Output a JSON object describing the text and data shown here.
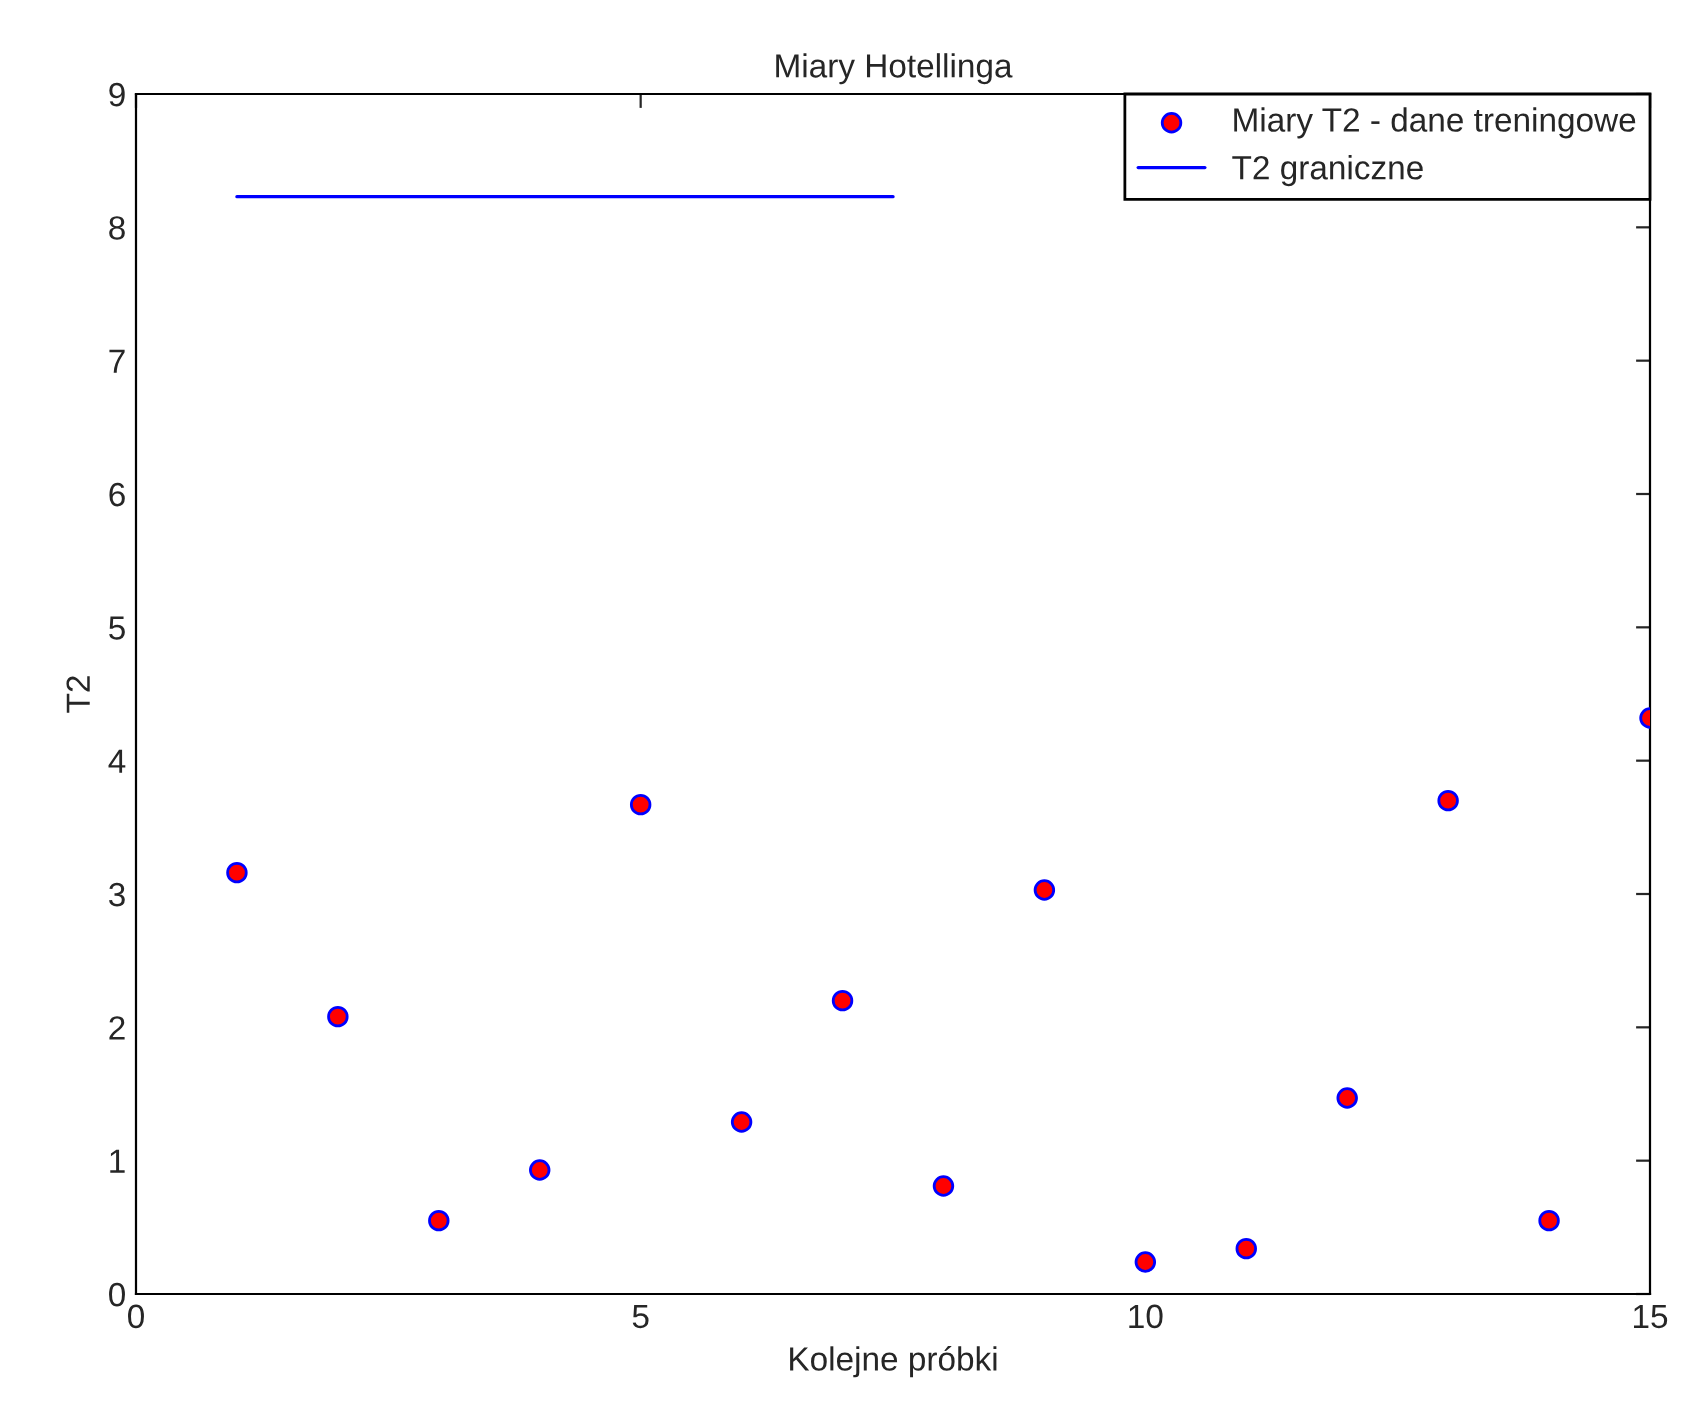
{
  "chart_data": {
    "type": "scatter",
    "title": "Miary Hotellinga",
    "xlabel": "Kolejne próbki",
    "ylabel": "T2",
    "series": [
      {
        "name": "Miary T2 - dane treningowe",
        "color": "#ff0000",
        "marker": "circle",
        "x": [
          1,
          2,
          3,
          4,
          5,
          6,
          7,
          8,
          9,
          10,
          11,
          12,
          13,
          14,
          15
        ],
        "values": [
          3.16,
          2.08,
          0.55,
          0.93,
          3.67,
          1.29,
          2.2,
          0.81,
          3.03,
          0.24,
          0.34,
          1.47,
          3.7,
          0.55,
          4.32
        ]
      },
      {
        "name": "T2 graniczne",
        "type": "line",
        "color": "#0000ff",
        "line_style": "solid",
        "x": [
          1,
          7.5
        ],
        "values": [
          8.23,
          8.23
        ]
      }
    ],
    "xlim": [
      0,
      15
    ],
    "xticks": [
      0,
      5,
      10,
      15
    ],
    "ylim": [
      0,
      9
    ],
    "yticks": [
      0,
      1,
      2,
      3,
      4,
      5,
      6,
      7,
      8,
      9
    ],
    "grid": false,
    "legend": "top right"
  }
}
